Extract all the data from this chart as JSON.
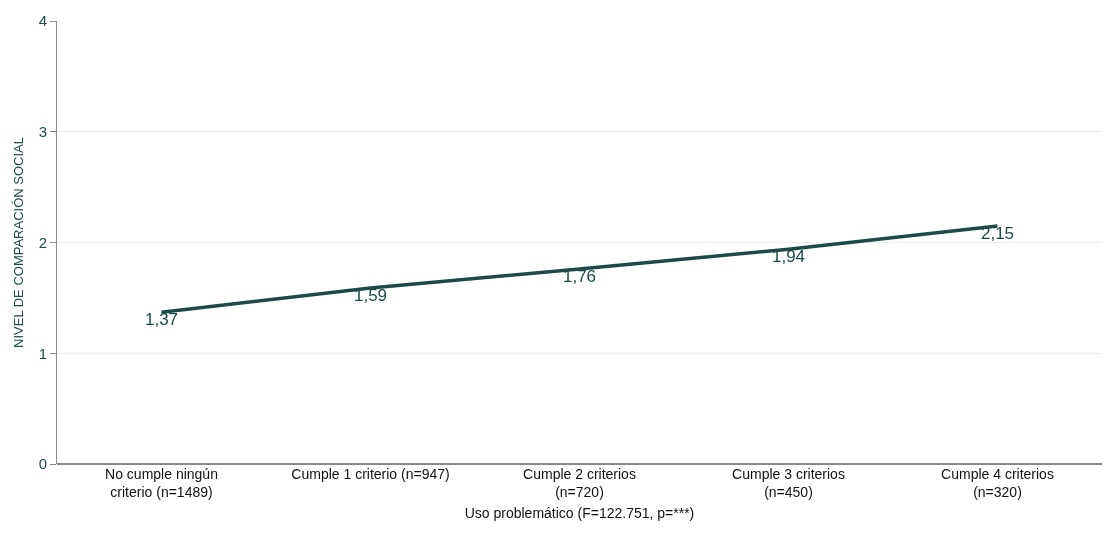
{
  "chart_data": {
    "type": "line",
    "categories": [
      "No cumple ningún\ncriterio (n=1489)",
      "Cumple 1 criterio (n=947)",
      "Cumple 2 criterios\n(n=720)",
      "Cumple 3 criterios\n(n=450)",
      "Cumple 4 criterios\n(n=320)"
    ],
    "series": [
      {
        "color": "#1c4a47",
        "values": [
          1.37,
          1.59,
          1.76,
          1.94,
          2.15
        ],
        "value_labels": [
          "1,37",
          "1,59",
          "1,76",
          "1,94",
          "2,15"
        ]
      }
    ],
    "xlabel": "Uso problemático (F=122.751, p=***)",
    "ylabel": "NIVEL DE COMPARACIÓN SOCIAL",
    "ylim": [
      0,
      4
    ],
    "yticks": [
      0,
      1,
      2,
      3,
      4
    ],
    "grid": "y",
    "legend": false,
    "marker": "none",
    "line_style": "solid"
  }
}
